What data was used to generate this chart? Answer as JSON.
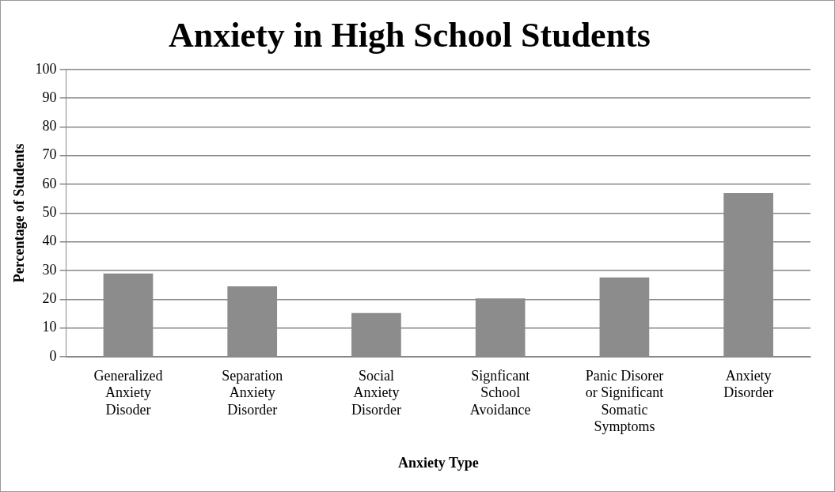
{
  "chart_data": {
    "type": "bar",
    "title": "Anxiety in High School Students",
    "xlabel": "Anxiety Type",
    "ylabel": "Percentage of Students",
    "categories": [
      "Generalized Anxiety Disoder",
      "Separation Anxiety Disorder",
      "Social Anxiety Disorder",
      "Signficant School Avoidance",
      "Panic Disorer or Significant Somatic Symptoms",
      "Anxiety Disorder"
    ],
    "values": [
      29,
      24.5,
      15.2,
      20.3,
      27.6,
      57
    ],
    "color": "#8c8c8c",
    "ylim": [
      0,
      100
    ],
    "yticks": [
      0,
      10,
      20,
      30,
      40,
      50,
      60,
      70,
      80,
      90,
      100
    ],
    "grid": "y",
    "legend": false
  }
}
